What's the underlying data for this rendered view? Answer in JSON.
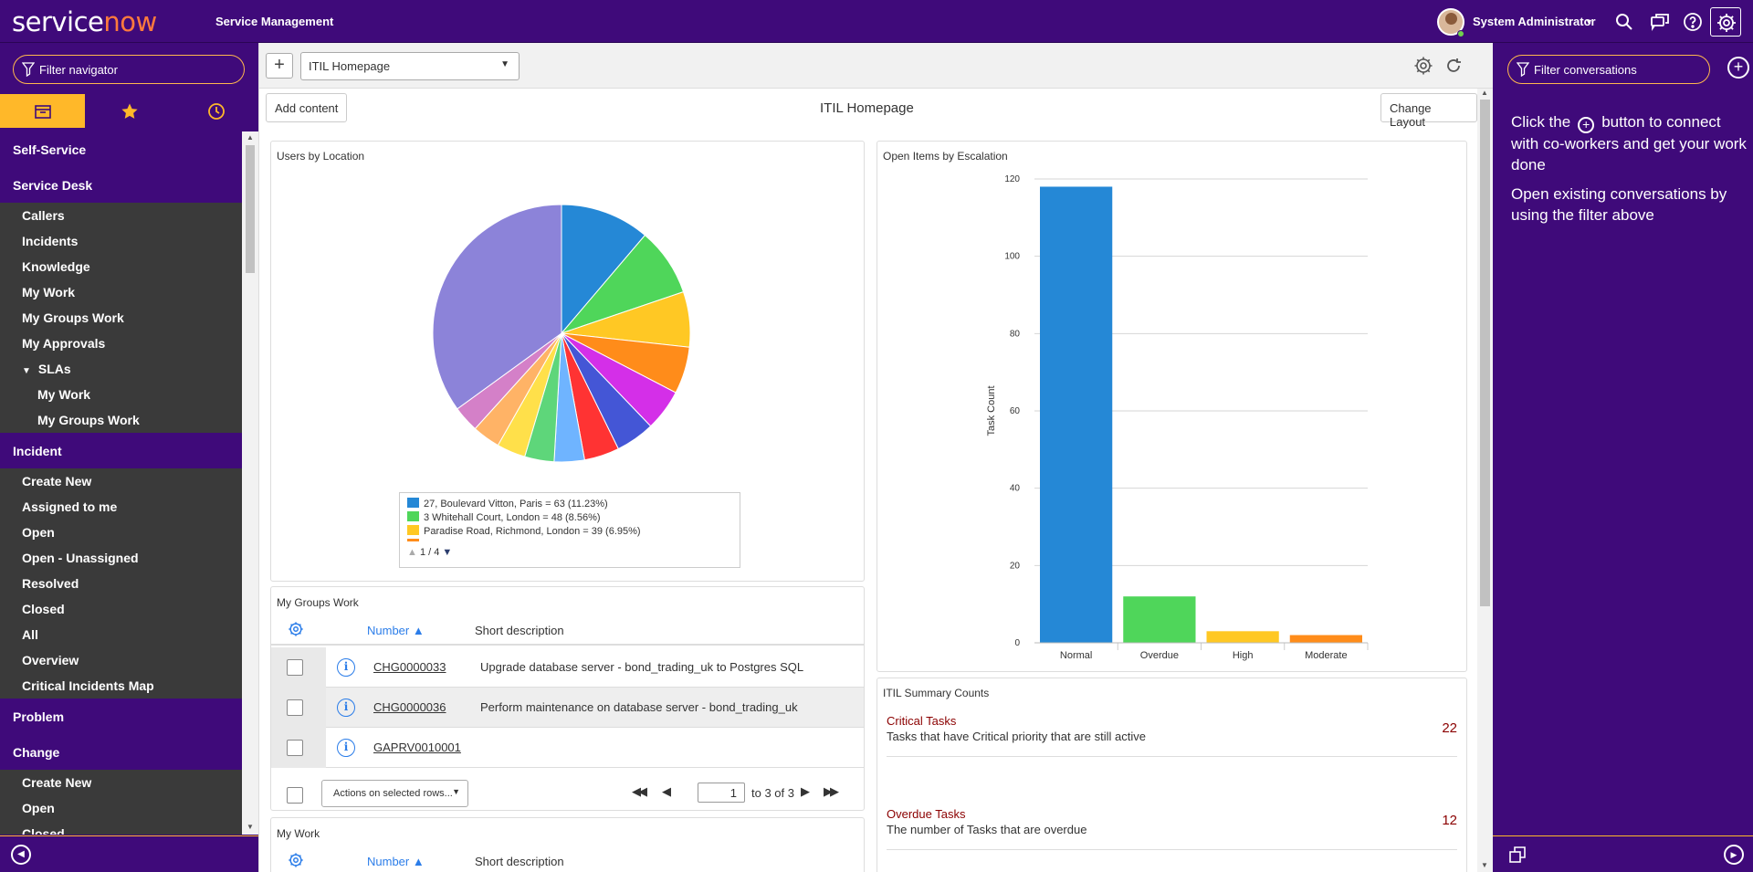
{
  "header": {
    "logo_part1": "service",
    "logo_part2": "now",
    "product": "Service Management",
    "user_name": "System Administrator"
  },
  "nav": {
    "filter_placeholder": "Filter navigator",
    "tabs": [
      "all-applications",
      "favorites",
      "history"
    ],
    "items": [
      {
        "type": "mod",
        "label": "Self-Service"
      },
      {
        "type": "mod",
        "label": "Service Desk"
      },
      {
        "type": "itm",
        "label": "Callers"
      },
      {
        "type": "itm",
        "label": "Incidents"
      },
      {
        "type": "itm",
        "label": "Knowledge"
      },
      {
        "type": "itm",
        "label": "My Work"
      },
      {
        "type": "itm",
        "label": "My Groups Work"
      },
      {
        "type": "itm",
        "label": "My Approvals"
      },
      {
        "type": "sec",
        "label": "SLAs"
      },
      {
        "type": "sub",
        "label": "My Work"
      },
      {
        "type": "sub",
        "label": "My Groups Work"
      },
      {
        "type": "mod",
        "label": "Incident"
      },
      {
        "type": "itm",
        "label": "Create New"
      },
      {
        "type": "itm",
        "label": "Assigned to me"
      },
      {
        "type": "itm",
        "label": "Open"
      },
      {
        "type": "itm",
        "label": "Open - Unassigned"
      },
      {
        "type": "itm",
        "label": "Resolved"
      },
      {
        "type": "itm",
        "label": "Closed"
      },
      {
        "type": "itm",
        "label": "All"
      },
      {
        "type": "itm",
        "label": "Overview"
      },
      {
        "type": "itm",
        "label": "Critical Incidents Map"
      },
      {
        "type": "mod",
        "label": "Problem"
      },
      {
        "type": "mod",
        "label": "Change"
      },
      {
        "type": "itm",
        "label": "Create New"
      },
      {
        "type": "itm",
        "label": "Open"
      },
      {
        "type": "itm",
        "label": "Closed"
      }
    ]
  },
  "toolbar": {
    "add_label": "+",
    "page_select": "ITIL Homepage",
    "add_content": "Add content",
    "change_layout": "Change Layout",
    "page_title": "ITIL Homepage"
  },
  "users_by_location": {
    "title": "Users by Location",
    "legend": [
      {
        "label": "27, Boulevard Vitton, Paris = 63 (11.23%)",
        "color": "#2588d6"
      },
      {
        "label": "3 Whitehall Court, London = 48 (8.56%)",
        "color": "#4fd65a"
      },
      {
        "label": "Paradise Road, Richmond, London = 39 (6.95%)",
        "color": "#ffc824"
      }
    ],
    "legend_page": "1 / 4",
    "slices": [
      {
        "value": 11.23,
        "color": "#2588d6"
      },
      {
        "value": 8.56,
        "color": "#4fd65a"
      },
      {
        "value": 6.95,
        "color": "#ffc824"
      },
      {
        "value": 5.9,
        "color": "#ff8c1a"
      },
      {
        "value": 5.2,
        "color": "#d42fe8"
      },
      {
        "value": 4.9,
        "color": "#4456d6"
      },
      {
        "value": 4.4,
        "color": "#ff3333"
      },
      {
        "value": 3.8,
        "color": "#6fb4ff"
      },
      {
        "value": 3.7,
        "color": "#5ed67a"
      },
      {
        "value": 3.6,
        "color": "#ffe04a"
      },
      {
        "value": 3.5,
        "color": "#ffb366"
      },
      {
        "value": 3.3,
        "color": "#d480c8"
      },
      {
        "value": 35.0,
        "color": "#8c83d9"
      }
    ]
  },
  "my_groups_work": {
    "title": "My Groups Work",
    "col_number": "Number",
    "col_desc": "Short description",
    "rows": [
      {
        "number": "CHG0000033",
        "desc": "Upgrade database server - bond_trading_uk to Postgres SQL"
      },
      {
        "number": "CHG0000036",
        "desc": "Perform maintenance on database server - bond_trading_uk"
      },
      {
        "number": "GAPRV0010001",
        "desc": ""
      }
    ],
    "actions": "Actions on selected rows...",
    "page_value": "1",
    "page_total": "to 3 of 3"
  },
  "my_work": {
    "title": "My Work",
    "col_number": "Number",
    "col_desc": "Short description"
  },
  "escalation": {
    "title": "Open Items by Escalation",
    "ylabel": "Task Count"
  },
  "chart_data": {
    "type": "bar",
    "title": "Open Items by Escalation",
    "xlabel": "",
    "ylabel": "Task Count",
    "categories": [
      "Normal",
      "Overdue",
      "High",
      "Moderate"
    ],
    "values": [
      118,
      12,
      3,
      2
    ],
    "colors": [
      "#2588d6",
      "#4fd65a",
      "#ffc824",
      "#ff8c1a"
    ],
    "ylim": [
      0,
      120
    ],
    "yticks": [
      0,
      20,
      40,
      60,
      80,
      100,
      120
    ],
    "grid": true
  },
  "summary": {
    "title": "ITIL Summary Counts",
    "items": [
      {
        "title": "Critical Tasks",
        "desc": "Tasks that have Critical priority that are still active",
        "value": "22"
      },
      {
        "title": "Overdue Tasks",
        "desc": "The number of Tasks that are overdue",
        "value": "12"
      }
    ]
  },
  "connect": {
    "filter_placeholder": "Filter conversations",
    "msg1_a": "Click the",
    "msg1_b": "button to connect with co-workers and get your work done",
    "msg2": "Open existing conversations by using the filter above"
  }
}
